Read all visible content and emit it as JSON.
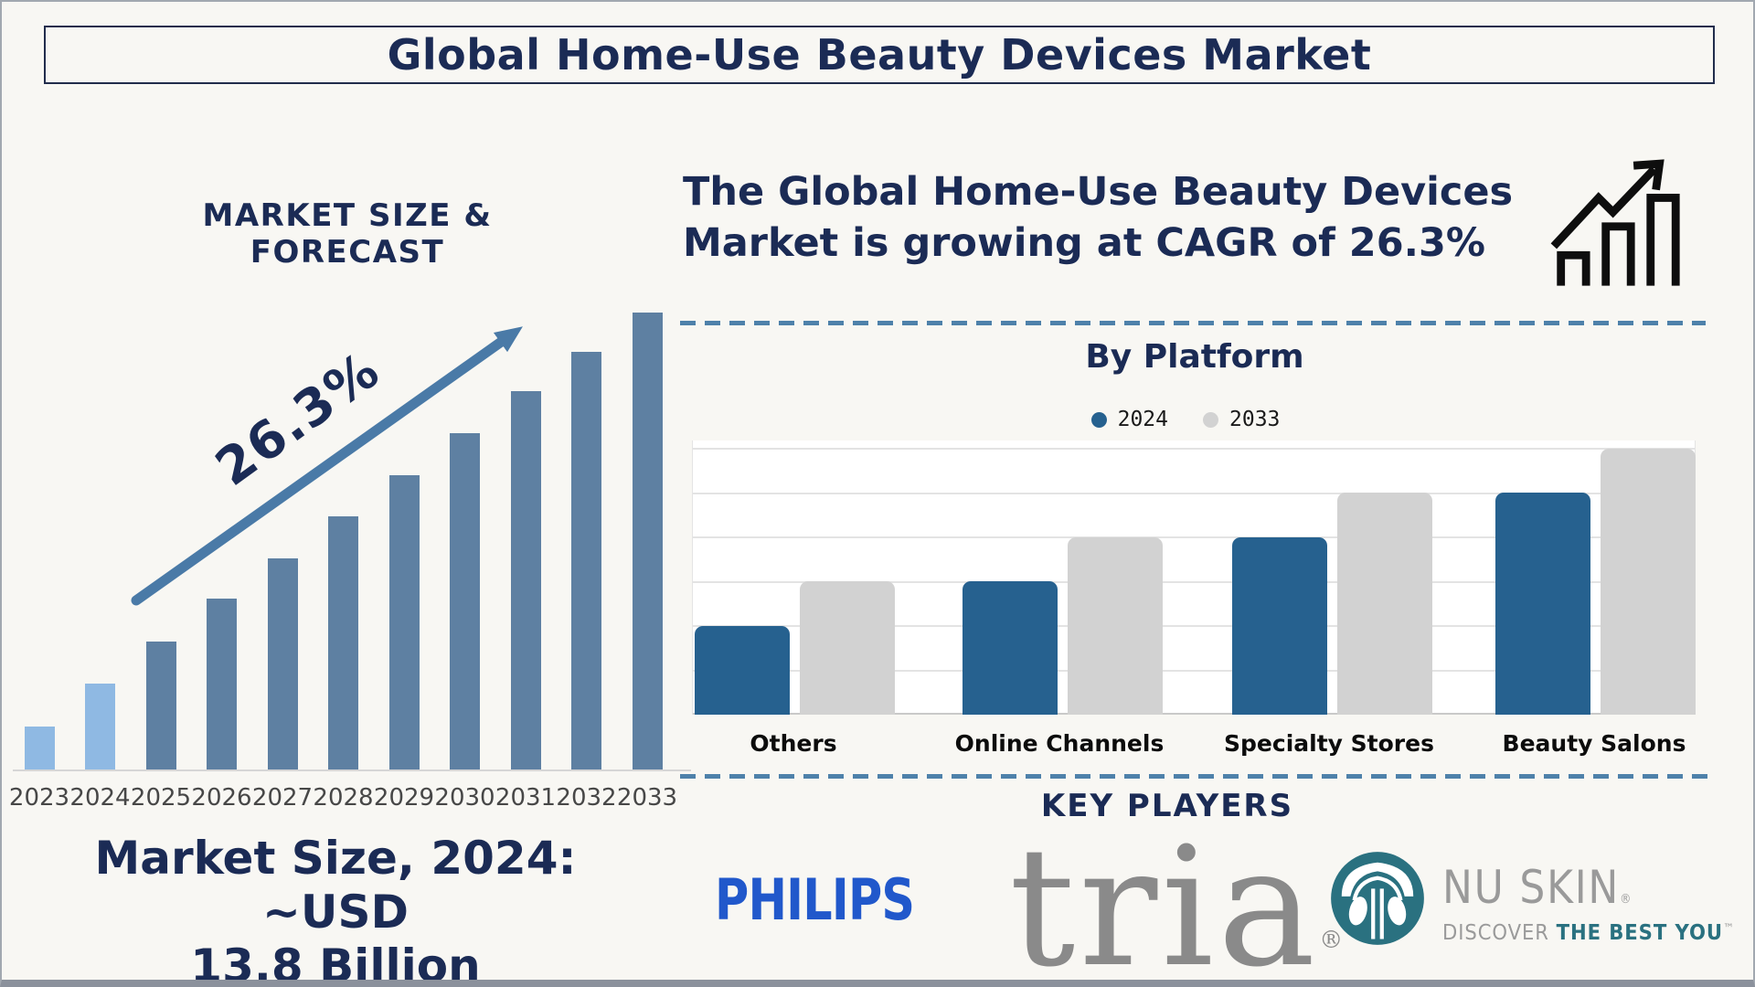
{
  "title": "Global Home-Use Beauty Devices Market",
  "left_panel": {
    "heading": "MARKET SIZE & FORECAST",
    "growth_annotation": "26.3%",
    "note_line1": "Market Size, 2024: ~USD",
    "note_line2": "13.8 Billion"
  },
  "right_panel": {
    "intro_line1": "The Global Home-Use Beauty Devices",
    "intro_line2": "Market is growing at CAGR of 26.3%",
    "by_platform": {
      "heading": "By Platform",
      "legend": [
        {
          "label": "2024",
          "color": "#26618f"
        },
        {
          "label": "2033",
          "color": "#d2d2d2"
        }
      ]
    },
    "key_players": {
      "heading": "KEY PLAYERS",
      "philips": "PHILIPS",
      "tria": "tria",
      "tria_reg": "®",
      "nuskin_name": "NU SKIN",
      "nuskin_reg": "®",
      "nuskin_tagline_gray": "DISCOVER ",
      "nuskin_tagline_teal": "THE BEST YOU",
      "nuskin_tm": "™"
    }
  },
  "chart_data": [
    {
      "id": "market_size_forecast",
      "type": "bar",
      "title": "MARKET SIZE & FORECAST",
      "categories": [
        "2023",
        "2024",
        "2025",
        "2026",
        "2027",
        "2028",
        "2029",
        "2030",
        "2031",
        "2032",
        "2033"
      ],
      "values": [
        9.4,
        18.8,
        28,
        37.4,
        46.2,
        55.4,
        64.4,
        73.6,
        82.8,
        91.4,
        100
      ],
      "values_unit": "relative bar height, % of 2033 bar (no numeric axis shown)",
      "annotation": "26.3%",
      "note": "Market Size, 2024: ~USD 13.8 Billion",
      "bar_color_2023_2024": "#8fb9e3",
      "bar_color_2025_2033": "#5e80a2",
      "xlabel": "",
      "ylabel": "",
      "grid": false
    },
    {
      "id": "by_platform",
      "type": "bar",
      "title": "By Platform",
      "categories": [
        "Others",
        "Online Channels",
        "Specialty Stores",
        "Beauty Salons"
      ],
      "series": [
        {
          "name": "2024",
          "color": "#26618f",
          "values": [
            2,
            3,
            4,
            5
          ]
        },
        {
          "name": "2033",
          "color": "#d2d2d2",
          "values": [
            3,
            4,
            5,
            6
          ]
        }
      ],
      "values_unit": "relative gridline units (no numeric axis labels shown)",
      "ylim": [
        0,
        6
      ],
      "grid": true,
      "legend_position": "top"
    }
  ],
  "colors": {
    "navy": "#1b2b55",
    "arrow_steel_blue": "#4a7aa7",
    "dashed_divider": "#4e81aa",
    "bar_light_blue": "#8fb9e3",
    "bar_slate_blue": "#5e80a2",
    "platform_blue": "#26618f",
    "platform_gray": "#d2d2d2",
    "philips_blue": "#2158cb",
    "tria_gray": "#8a8a8a",
    "nuskin_teal": "#2a7180",
    "background": "#f8f7f3"
  },
  "icons": [
    {
      "name": "growth-chart-icon",
      "desc": "three outlined bars with rising zigzag arrow"
    },
    {
      "name": "rising-arrow-icon",
      "desc": "diagonal steel-blue arrow over forecast bars"
    },
    {
      "name": "nuskin-emblem-icon",
      "desc": "teal circular fountain/palm emblem"
    }
  ]
}
